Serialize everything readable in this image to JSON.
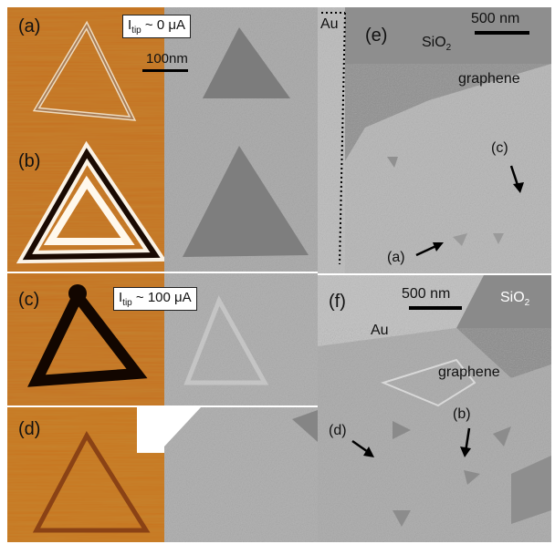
{
  "panels": {
    "a": {
      "label": "(a)",
      "current": "I",
      "current_sub": "tip",
      "current_rest": " ~ 0 μA",
      "scalebar": "100nm"
    },
    "b": {
      "label": "(b)"
    },
    "c": {
      "label": "(c)",
      "current": "I",
      "current_sub": "tip",
      "current_rest": " ~ 100 μA"
    },
    "d": {
      "label": "(d)"
    },
    "e": {
      "label": "(e)",
      "scalebar": "500 nm",
      "au": "Au",
      "sio2": "SiO",
      "sio2_sub": "2",
      "graphene": "graphene",
      "arrow_a": "(a)",
      "arrow_c": "(c)"
    },
    "f": {
      "label": "(f)",
      "scalebar": "500 nm",
      "au": "Au",
      "sio2": "SiO",
      "sio2_sub": "2",
      "graphene": "graphene",
      "arrow_b": "(b)",
      "arrow_d": "(d)"
    }
  },
  "colors": {
    "afm": "#c8741e",
    "sem_light": "#b4b4b4",
    "sem_dark": "#7a7a7a"
  }
}
